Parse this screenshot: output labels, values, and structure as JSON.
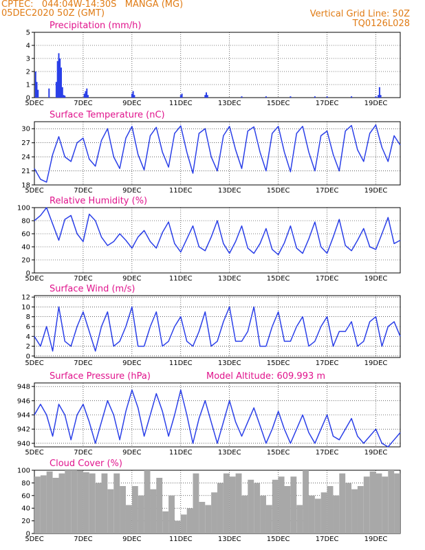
{
  "header": {
    "line1": "CPTEC:   044:04W-14:30S   MANGA (MG)",
    "line2": "05DEC2020 50Z (GMT)",
    "right1": "Vertical Grid Line: 50Z",
    "right2": "TQ0126L028"
  },
  "colors": {
    "header": "#e07b14",
    "title": "#e0138c",
    "line": "#2a3fe8",
    "cloud": "#a8a8a8"
  },
  "x_axis": {
    "labels": [
      "5DEC",
      "7DEC",
      "9DEC",
      "11DEC",
      "13DEC",
      "15DEC",
      "17DEC",
      "19DEC"
    ],
    "label_days": [
      0,
      2,
      4,
      6,
      8,
      10,
      12,
      14
    ],
    "day_range": [
      0,
      15
    ]
  },
  "chart_data": [
    {
      "type": "bar",
      "title": "Precipitation (mm/h)",
      "ylim": [
        0,
        5
      ],
      "yticks": [
        0,
        1,
        2,
        3,
        4,
        5
      ],
      "series": [
        {
          "x": [
            0.05,
            0.1,
            0.15,
            0.6,
            0.9,
            0.95,
            1.0,
            1.05,
            1.1,
            1.15,
            1.2,
            1.25,
            2.05,
            2.1,
            2.15,
            2.2,
            4.0,
            4.05,
            4.1,
            6.0,
            6.05,
            7.0,
            7.05,
            7.1,
            8.5,
            9.5,
            10.5,
            11.5,
            12.0,
            13.0,
            14.0,
            14.1,
            14.15,
            14.2
          ],
          "values": [
            2.0,
            1.2,
            0.6,
            0.7,
            1.2,
            2.8,
            3.4,
            3.0,
            2.3,
            0.8,
            0.2,
            0.15,
            0.3,
            0.5,
            0.7,
            0.2,
            0.3,
            0.5,
            0.2,
            0.2,
            0.3,
            0.2,
            0.4,
            0.2,
            0.1,
            0.1,
            0.1,
            0.1,
            0.1,
            0.1,
            0.1,
            0.2,
            0.8,
            0.2
          ]
        }
      ]
    },
    {
      "type": "line",
      "title": "Surface Temperature (nC)",
      "ylim": [
        18,
        31.5
      ],
      "yticks": [
        18,
        21,
        24,
        27,
        30
      ],
      "series": [
        {
          "x": [
            0,
            0.25,
            0.5,
            0.75,
            1.0,
            1.25,
            1.5,
            1.75,
            2.0,
            2.25,
            2.5,
            2.75,
            3.0,
            3.25,
            3.5,
            3.75,
            4.0,
            4.25,
            4.5,
            4.75,
            5.0,
            5.25,
            5.5,
            5.75,
            6.0,
            6.25,
            6.5,
            6.75,
            7.0,
            7.25,
            7.5,
            7.75,
            8.0,
            8.25,
            8.5,
            8.75,
            9.0,
            9.25,
            9.5,
            9.75,
            10.0,
            10.25,
            10.5,
            10.75,
            11.0,
            11.25,
            11.5,
            11.75,
            12.0,
            12.25,
            12.5,
            12.75,
            13.0,
            13.25,
            13.5,
            13.75,
            14.0,
            14.25,
            14.5,
            14.75,
            15.0
          ],
          "values": [
            21.5,
            19.2,
            18.6,
            24.5,
            28.3,
            24.0,
            23.0,
            27.0,
            28.0,
            23.5,
            22.0,
            27.5,
            30.0,
            24.0,
            21.5,
            28.0,
            30.5,
            24.5,
            21.2,
            28.5,
            30.3,
            25.0,
            21.8,
            29.0,
            30.6,
            25.0,
            20.5,
            29.0,
            30.0,
            24.0,
            21.0,
            28.5,
            30.5,
            25.5,
            21.5,
            29.5,
            30.4,
            25.0,
            21.0,
            29.0,
            30.5,
            25.0,
            20.8,
            29.0,
            30.5,
            25.0,
            21.0,
            28.5,
            29.5,
            24.5,
            21.0,
            29.5,
            30.7,
            25.5,
            23.0,
            29.0,
            30.8,
            26.0,
            23.0,
            28.5,
            26.5
          ]
        }
      ]
    },
    {
      "type": "line",
      "title": "Relative Humidity (%)",
      "ylim": [
        0,
        100
      ],
      "yticks": [
        0,
        20,
        40,
        60,
        80,
        100
      ],
      "series": [
        {
          "x": [
            0,
            0.25,
            0.5,
            0.75,
            1.0,
            1.25,
            1.5,
            1.75,
            2.0,
            2.25,
            2.5,
            2.75,
            3.0,
            3.25,
            3.5,
            3.75,
            4.0,
            4.25,
            4.5,
            4.75,
            5.0,
            5.25,
            5.5,
            5.75,
            6.0,
            6.25,
            6.5,
            6.75,
            7.0,
            7.25,
            7.5,
            7.75,
            8.0,
            8.25,
            8.5,
            8.75,
            9.0,
            9.25,
            9.5,
            9.75,
            10.0,
            10.25,
            10.5,
            10.75,
            11.0,
            11.25,
            11.5,
            11.75,
            12.0,
            12.25,
            12.5,
            12.75,
            13.0,
            13.25,
            13.5,
            13.75,
            14.0,
            14.25,
            14.5,
            14.75,
            15.0
          ],
          "values": [
            80,
            88,
            100,
            75,
            50,
            82,
            88,
            60,
            48,
            90,
            80,
            55,
            42,
            48,
            60,
            50,
            38,
            55,
            65,
            48,
            38,
            62,
            78,
            45,
            32,
            52,
            72,
            40,
            34,
            55,
            80,
            45,
            30,
            48,
            72,
            38,
            30,
            45,
            68,
            36,
            28,
            46,
            72,
            38,
            30,
            52,
            78,
            40,
            30,
            55,
            82,
            42,
            34,
            50,
            68,
            40,
            36,
            60,
            85,
            45,
            50
          ]
        }
      ]
    },
    {
      "type": "line",
      "title": "Surface Wind (m/s)",
      "ylim": [
        -0.3,
        12.3
      ],
      "yticks": [
        0,
        2,
        4,
        6,
        8,
        10,
        12
      ],
      "series": [
        {
          "x": [
            0,
            0.25,
            0.5,
            0.75,
            1.0,
            1.25,
            1.5,
            1.75,
            2.0,
            2.25,
            2.5,
            2.75,
            3.0,
            3.25,
            3.5,
            3.75,
            4.0,
            4.25,
            4.5,
            4.75,
            5.0,
            5.25,
            5.5,
            5.75,
            6.0,
            6.25,
            6.5,
            6.75,
            7.0,
            7.25,
            7.5,
            7.75,
            8.0,
            8.25,
            8.5,
            8.75,
            9.0,
            9.25,
            9.5,
            9.75,
            10.0,
            10.25,
            10.5,
            10.75,
            11.0,
            11.25,
            11.5,
            11.75,
            12.0,
            12.25,
            12.5,
            12.75,
            13.0,
            13.25,
            13.5,
            13.75,
            14.0,
            14.25,
            14.5,
            14.75,
            15.0
          ],
          "values": [
            4,
            2,
            6,
            1,
            10,
            3,
            2,
            6,
            9,
            5,
            1,
            6,
            9,
            2,
            3,
            6,
            10,
            2,
            2,
            6,
            9,
            2,
            3,
            6,
            8,
            3,
            2,
            5,
            9,
            2,
            3,
            7,
            10,
            3,
            3,
            5,
            10,
            2,
            2,
            6,
            9,
            3,
            3,
            6,
            8,
            2,
            3,
            6,
            8,
            2,
            5,
            5,
            7,
            2,
            3,
            7,
            8,
            2,
            6,
            7,
            4
          ]
        }
      ]
    },
    {
      "type": "line",
      "title": "Surface Pressure (hPa)",
      "subtitle": "Model Altitude: 609.993  m",
      "ylim": [
        939.5,
        948.5
      ],
      "yticks": [
        940,
        942,
        944,
        946,
        948
      ],
      "series": [
        {
          "x": [
            0,
            0.25,
            0.5,
            0.75,
            1.0,
            1.25,
            1.5,
            1.75,
            2.0,
            2.25,
            2.5,
            2.75,
            3.0,
            3.25,
            3.5,
            3.75,
            4.0,
            4.25,
            4.5,
            4.75,
            5.0,
            5.25,
            5.5,
            5.75,
            6.0,
            6.25,
            6.5,
            6.75,
            7.0,
            7.25,
            7.5,
            7.75,
            8.0,
            8.25,
            8.5,
            8.75,
            9.0,
            9.25,
            9.5,
            9.75,
            10.0,
            10.25,
            10.5,
            10.75,
            11.0,
            11.25,
            11.5,
            11.75,
            12.0,
            12.25,
            12.5,
            12.75,
            13.0,
            13.25,
            13.5,
            13.75,
            14.0,
            14.25,
            14.5,
            14.75,
            15.0
          ],
          "values": [
            944,
            945.5,
            944,
            941,
            945.5,
            944,
            940.5,
            944,
            945.5,
            943,
            940,
            943,
            946,
            944,
            940.5,
            944.5,
            947.5,
            945,
            941,
            944,
            947,
            944.5,
            941,
            944,
            947.5,
            944,
            940,
            943.5,
            946,
            943,
            940,
            943,
            946,
            943,
            941,
            943,
            945,
            942.5,
            940,
            942,
            944.5,
            942,
            940,
            942,
            944,
            941.5,
            940,
            942,
            944,
            941,
            940.5,
            942,
            943.5,
            941,
            940,
            941,
            942,
            940,
            939.5,
            940.5,
            941.5
          ]
        }
      ]
    },
    {
      "type": "bar",
      "title": "Cloud Cover (%)",
      "ylim": [
        0,
        100
      ],
      "yticks": [
        0,
        20,
        40,
        60,
        80,
        100
      ],
      "series": [
        {
          "x": [
            0,
            0.25,
            0.5,
            0.75,
            1.0,
            1.25,
            1.5,
            1.75,
            2.0,
            2.25,
            2.5,
            2.75,
            3.0,
            3.25,
            3.5,
            3.75,
            4.0,
            4.25,
            4.5,
            4.75,
            5.0,
            5.25,
            5.5,
            5.75,
            6.0,
            6.25,
            6.5,
            6.75,
            7.0,
            7.25,
            7.5,
            7.75,
            8.0,
            8.25,
            8.5,
            8.75,
            9.0,
            9.25,
            9.5,
            9.75,
            10.0,
            10.25,
            10.5,
            10.75,
            11.0,
            11.25,
            11.5,
            11.75,
            12.0,
            12.25,
            12.5,
            12.75,
            13.0,
            13.25,
            13.5,
            13.75,
            14.0,
            14.25,
            14.5,
            14.75
          ],
          "values": [
            90,
            92,
            98,
            88,
            95,
            100,
            100,
            99,
            97,
            95,
            80,
            95,
            70,
            95,
            75,
            45,
            75,
            60,
            100,
            70,
            88,
            35,
            60,
            20,
            30,
            40,
            95,
            50,
            45,
            65,
            80,
            95,
            90,
            95,
            60,
            85,
            80,
            60,
            45,
            85,
            90,
            75,
            90,
            45,
            100,
            60,
            55,
            65,
            75,
            60,
            95,
            80,
            70,
            75,
            90,
            98,
            95,
            90,
            100,
            95
          ]
        }
      ]
    }
  ]
}
